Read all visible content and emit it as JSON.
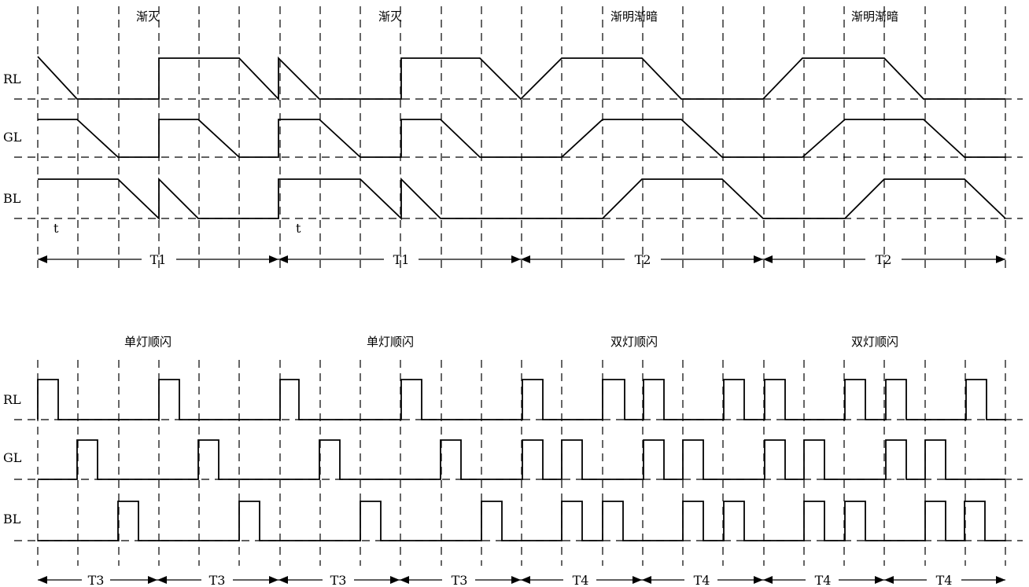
{
  "top": {
    "headers": [
      "渐灭",
      "渐灭",
      "渐明渐暗",
      "渐明渐暗"
    ],
    "channels": [
      {
        "label": "RL",
        "levels": [
          "H",
          "L",
          "L",
          "L",
          "H",
          "H",
          "H",
          "L",
          "L",
          "L",
          "H",
          "H",
          "L",
          "H",
          "H",
          "L",
          "L",
          "L",
          "H",
          "H",
          "L",
          "L",
          "L",
          "L"
        ]
      },
      {
        "label": "GL",
        "levels": [
          "H",
          "H",
          "L",
          "L",
          "H",
          "H",
          "L",
          "H",
          "H",
          "L",
          "L",
          "H",
          "H",
          "L",
          "L",
          "L",
          "H",
          "H",
          "L",
          "L",
          "L",
          "H",
          "H",
          "L"
        ]
      },
      {
        "label": "BL",
        "levels": [
          "H",
          "H",
          "H",
          "L",
          "H",
          "L",
          "H",
          "H",
          "H",
          "L",
          "H",
          "L",
          "L",
          "L",
          "L",
          "L",
          "L",
          "H",
          "H",
          "L",
          "L",
          "L",
          "L",
          "H"
        ]
      }
    ],
    "t_labels": [
      "t",
      "t"
    ],
    "periods": [
      "T1",
      "T1",
      "T2",
      "T2"
    ]
  },
  "bottom": {
    "headers": [
      "单灯顺闪",
      "单灯顺闪",
      "双灯顺闪",
      "双灯顺闪"
    ],
    "channels": [
      {
        "label": "RL"
      },
      {
        "label": "GL"
      },
      {
        "label": "BL"
      }
    ],
    "periods": [
      "T3",
      "T3",
      "T3",
      "T3",
      "T4",
      "T4",
      "T4",
      "T4"
    ]
  }
}
